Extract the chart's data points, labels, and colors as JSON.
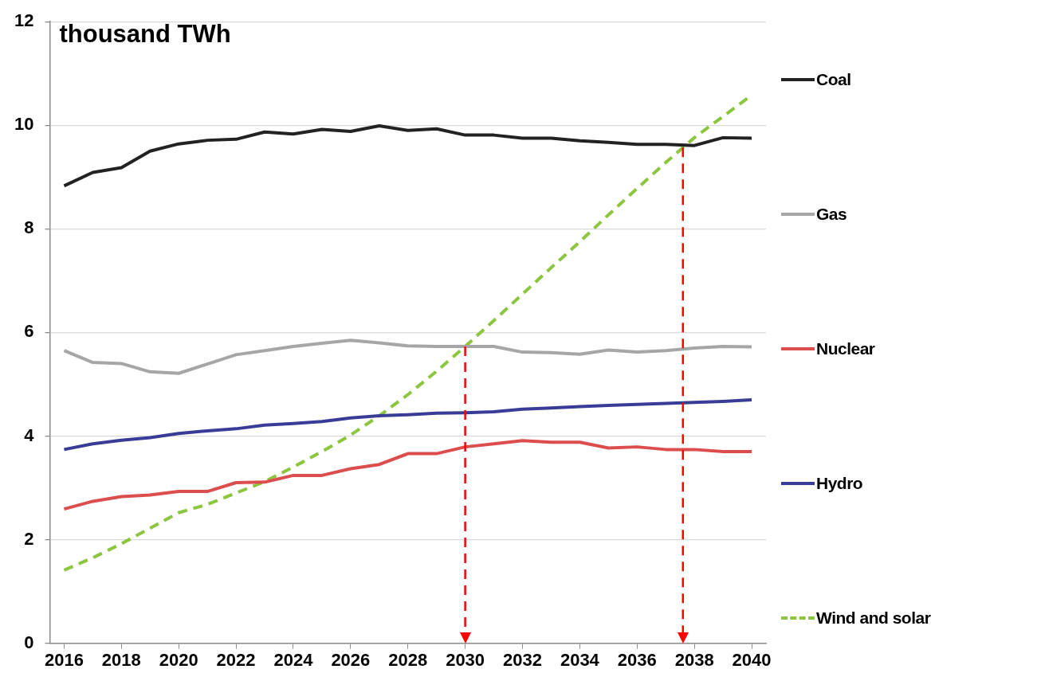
{
  "chart_data": {
    "type": "line",
    "ylabel": "thousand TWh",
    "x": [
      2016,
      2017,
      2018,
      2019,
      2020,
      2021,
      2022,
      2023,
      2024,
      2025,
      2026,
      2027,
      2028,
      2029,
      2030,
      2031,
      2032,
      2033,
      2034,
      2035,
      2036,
      2037,
      2038,
      2039,
      2040
    ],
    "series": [
      {
        "name": "Coal",
        "color": "#222222",
        "values": [
          8.83,
          9.09,
          9.18,
          9.5,
          9.64,
          9.71,
          9.73,
          9.87,
          9.83,
          9.92,
          9.88,
          9.99,
          9.9,
          9.93,
          9.81,
          9.81,
          9.75,
          9.75,
          9.7,
          9.67,
          9.63,
          9.63,
          9.61,
          9.76,
          9.75
        ]
      },
      {
        "name": "Gas",
        "color": "#a6a6a6",
        "values": [
          5.65,
          5.42,
          5.4,
          5.24,
          5.21,
          5.39,
          5.57,
          5.65,
          5.73,
          5.79,
          5.85,
          5.8,
          5.74,
          5.73,
          5.73,
          5.73,
          5.62,
          5.61,
          5.58,
          5.66,
          5.62,
          5.65,
          5.7,
          5.73,
          5.72
        ]
      },
      {
        "name": "Nuclear",
        "color": "#dc4e4e",
        "values": [
          2.59,
          2.74,
          2.83,
          2.86,
          2.93,
          2.93,
          3.1,
          3.11,
          3.24,
          3.24,
          3.37,
          3.45,
          3.66,
          3.66,
          3.79,
          3.85,
          3.91,
          3.88,
          3.88,
          3.77,
          3.79,
          3.74,
          3.74,
          3.7,
          3.7
        ]
      },
      {
        "name": "Hydro",
        "color": "#383c96",
        "values": [
          3.74,
          3.85,
          3.92,
          3.97,
          4.05,
          4.1,
          4.14,
          4.21,
          4.24,
          4.28,
          4.35,
          4.39,
          4.41,
          4.44,
          4.45,
          4.47,
          4.52,
          4.54,
          4.57,
          4.59,
          4.61,
          4.63,
          4.65,
          4.67,
          4.7
        ]
      },
      {
        "name": "Wind and solar",
        "color": "#8cc63f",
        "line_style": "dashed",
        "values": [
          1.41,
          1.65,
          1.92,
          2.22,
          2.52,
          2.68,
          2.9,
          3.12,
          3.4,
          3.7,
          4.02,
          4.39,
          4.8,
          5.25,
          5.73,
          6.23,
          6.74,
          7.25,
          7.75,
          8.27,
          8.78,
          9.28,
          9.76,
          10.17,
          10.58
        ]
      }
    ],
    "xlim": [
      2015.5,
      2040.5
    ],
    "xticks": [
      2016,
      2018,
      2020,
      2022,
      2024,
      2026,
      2028,
      2030,
      2032,
      2034,
      2036,
      2038,
      2040
    ],
    "ylim": [
      0,
      12
    ],
    "yticks": [
      0,
      2,
      4,
      6,
      8,
      10,
      12
    ],
    "grid": "y",
    "legend": "right",
    "marker": "none",
    "ref_lines": [
      {
        "axis": "x",
        "value": 2030,
        "color": "#ff0000",
        "line_style": "dashed"
      },
      {
        "axis": "x",
        "value": 2037.6,
        "color": "#ff0000",
        "line_style": "dashed"
      }
    ]
  }
}
